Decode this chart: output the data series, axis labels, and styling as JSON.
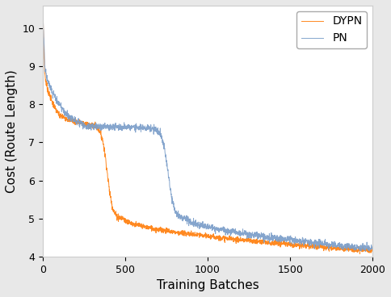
{
  "xlabel": "Training Batches",
  "ylabel": "Cost (Route Length)",
  "xlim": [
    0,
    2000
  ],
  "ylim": [
    4,
    10.6
  ],
  "yticks": [
    4,
    5,
    6,
    7,
    8,
    9,
    10
  ],
  "xticks": [
    0,
    500,
    1000,
    1500,
    2000
  ],
  "dypn_color": "#FF7F0E",
  "pn_color": "#7B9EC9",
  "legend_labels": [
    "DYPN",
    "PN"
  ],
  "noise_scale": 0.035,
  "n_points": 2000,
  "figsize": [
    4.84,
    3.68
  ],
  "dpi": 100
}
